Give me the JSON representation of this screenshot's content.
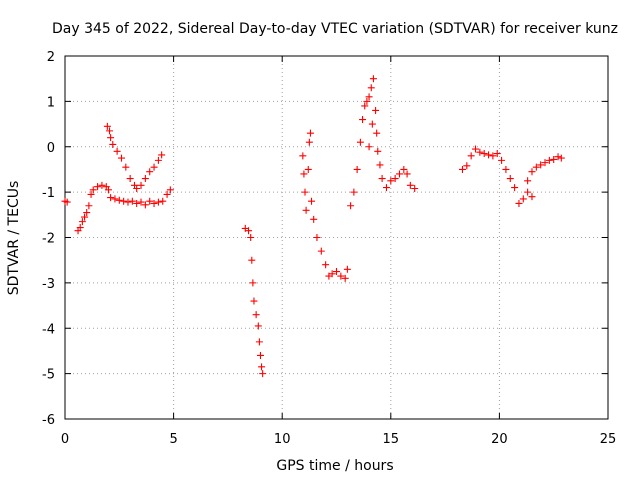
{
  "chart_data": {
    "type": "scatter",
    "title": "Day 345 of 2022, Sidereal Day-to-day VTEC variation (SDTVAR) for receiver kunz",
    "xlabel": "GPS time / hours",
    "ylabel": "SDTVAR / TECUs",
    "xlim": [
      0,
      25
    ],
    "ylim": [
      -6,
      2
    ],
    "xticks": [
      0,
      5,
      10,
      15,
      20,
      25
    ],
    "yticks": [
      -6,
      -5,
      -4,
      -3,
      -2,
      -1,
      0,
      1,
      2
    ],
    "grid": true,
    "marker": "plus",
    "color": "#ff0000",
    "series": [
      {
        "values": [
          [
            0.0,
            -1.2
          ],
          [
            0.1,
            -1.22
          ],
          [
            0.6,
            -1.85
          ],
          [
            0.7,
            -1.78
          ],
          [
            0.8,
            -1.65
          ],
          [
            0.9,
            -1.55
          ],
          [
            1.0,
            -1.45
          ],
          [
            1.1,
            -1.3
          ],
          [
            1.2,
            -1.05
          ],
          [
            1.3,
            -0.95
          ],
          [
            1.5,
            -0.88
          ],
          [
            1.7,
            -0.85
          ],
          [
            1.9,
            -0.88
          ],
          [
            2.0,
            -0.95
          ],
          [
            2.1,
            -1.12
          ],
          [
            2.3,
            -1.15
          ],
          [
            2.5,
            -1.18
          ],
          [
            2.7,
            -1.2
          ],
          [
            2.9,
            -1.22
          ],
          [
            3.1,
            -1.2
          ],
          [
            3.3,
            -1.25
          ],
          [
            3.5,
            -1.22
          ],
          [
            3.7,
            -1.28
          ],
          [
            3.9,
            -1.2
          ],
          [
            4.1,
            -1.25
          ],
          [
            4.3,
            -1.22
          ],
          [
            4.5,
            -1.2
          ],
          [
            4.7,
            -1.05
          ],
          [
            4.85,
            -0.95
          ],
          [
            1.95,
            0.45
          ],
          [
            2.05,
            0.35
          ],
          [
            2.1,
            0.2
          ],
          [
            2.2,
            0.05
          ],
          [
            2.4,
            -0.1
          ],
          [
            2.6,
            -0.25
          ],
          [
            2.8,
            -0.45
          ],
          [
            3.0,
            -0.7
          ],
          [
            3.2,
            -0.85
          ],
          [
            3.3,
            -0.92
          ],
          [
            3.5,
            -0.85
          ],
          [
            3.7,
            -0.7
          ],
          [
            3.9,
            -0.55
          ],
          [
            4.1,
            -0.45
          ],
          [
            4.3,
            -0.3
          ],
          [
            4.45,
            -0.18
          ],
          [
            8.3,
            -1.8
          ],
          [
            8.45,
            -1.85
          ],
          [
            8.55,
            -2.0
          ],
          [
            8.6,
            -2.5
          ],
          [
            8.65,
            -3.0
          ],
          [
            8.7,
            -3.4
          ],
          [
            8.8,
            -3.7
          ],
          [
            8.9,
            -3.95
          ],
          [
            8.95,
            -4.3
          ],
          [
            9.0,
            -4.6
          ],
          [
            9.05,
            -4.85
          ],
          [
            9.1,
            -5.0
          ],
          [
            10.95,
            -0.2
          ],
          [
            11.0,
            -0.6
          ],
          [
            11.05,
            -1.0
          ],
          [
            11.1,
            -1.4
          ],
          [
            11.2,
            -0.5
          ],
          [
            11.25,
            0.1
          ],
          [
            11.3,
            0.3
          ],
          [
            11.35,
            -1.2
          ],
          [
            11.45,
            -1.6
          ],
          [
            11.6,
            -2.0
          ],
          [
            11.8,
            -2.3
          ],
          [
            12.0,
            -2.6
          ],
          [
            12.15,
            -2.85
          ],
          [
            12.3,
            -2.8
          ],
          [
            12.5,
            -2.75
          ],
          [
            12.7,
            -2.85
          ],
          [
            12.9,
            -2.9
          ],
          [
            13.0,
            -2.7
          ],
          [
            13.15,
            -1.3
          ],
          [
            13.3,
            -1.0
          ],
          [
            13.45,
            -0.5
          ],
          [
            13.6,
            0.1
          ],
          [
            13.7,
            0.6
          ],
          [
            13.8,
            0.9
          ],
          [
            13.9,
            1.0
          ],
          [
            14.0,
            1.1
          ],
          [
            14.1,
            1.3
          ],
          [
            14.2,
            1.5
          ],
          [
            14.3,
            0.8
          ],
          [
            14.35,
            0.3
          ],
          [
            14.0,
            0.0
          ],
          [
            14.15,
            0.5
          ],
          [
            14.4,
            -0.1
          ],
          [
            14.5,
            -0.4
          ],
          [
            14.6,
            -0.7
          ],
          [
            14.8,
            -0.9
          ],
          [
            15.0,
            -0.75
          ],
          [
            15.2,
            -0.7
          ],
          [
            15.4,
            -0.6
          ],
          [
            15.6,
            -0.5
          ],
          [
            15.75,
            -0.6
          ],
          [
            15.9,
            -0.85
          ],
          [
            16.1,
            -0.92
          ],
          [
            18.3,
            -0.5
          ],
          [
            18.5,
            -0.42
          ],
          [
            18.7,
            -0.2
          ],
          [
            18.9,
            -0.05
          ],
          [
            19.1,
            -0.12
          ],
          [
            19.3,
            -0.15
          ],
          [
            19.5,
            -0.18
          ],
          [
            19.7,
            -0.2
          ],
          [
            19.9,
            -0.15
          ],
          [
            20.1,
            -0.3
          ],
          [
            20.3,
            -0.5
          ],
          [
            20.5,
            -0.7
          ],
          [
            20.7,
            -0.9
          ],
          [
            20.9,
            -1.25
          ],
          [
            21.1,
            -1.15
          ],
          [
            21.3,
            -1.0
          ],
          [
            21.5,
            -1.1
          ],
          [
            21.3,
            -0.75
          ],
          [
            21.5,
            -0.55
          ],
          [
            21.7,
            -0.45
          ],
          [
            21.9,
            -0.4
          ],
          [
            22.1,
            -0.35
          ],
          [
            22.3,
            -0.3
          ],
          [
            22.5,
            -0.28
          ],
          [
            22.7,
            -0.22
          ],
          [
            22.85,
            -0.25
          ]
        ]
      }
    ]
  }
}
